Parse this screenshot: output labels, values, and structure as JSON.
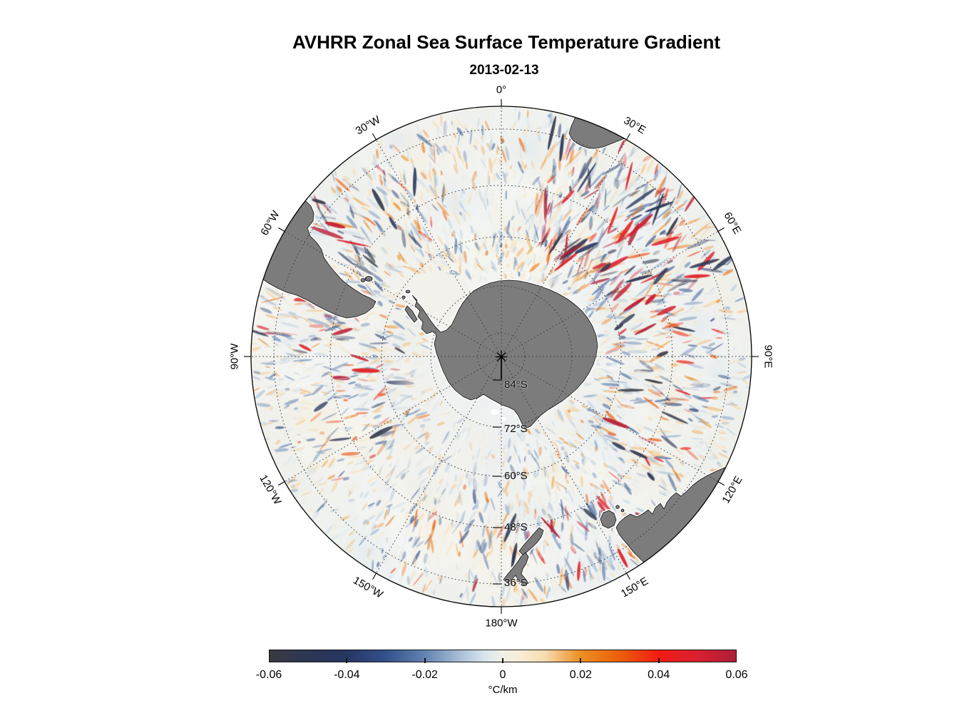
{
  "figure": {
    "title": "AVHRR Zonal Sea Surface Temperature Gradient",
    "subtitle": "2013-02-13"
  },
  "map": {
    "longitude_labels": [
      {
        "deg": 0,
        "text": "0°"
      },
      {
        "deg": 30,
        "text": "30°E"
      },
      {
        "deg": 60,
        "text": "60°E"
      },
      {
        "deg": 90,
        "text": "90°E"
      },
      {
        "deg": 120,
        "text": "120°E"
      },
      {
        "deg": 150,
        "text": "150°E"
      },
      {
        "deg": 180,
        "text": "180°W"
      },
      {
        "deg": 210,
        "text": "150°W"
      },
      {
        "deg": 240,
        "text": "120°W"
      },
      {
        "deg": 270,
        "text": "90°W"
      },
      {
        "deg": 300,
        "text": "60°W"
      },
      {
        "deg": 330,
        "text": "30°W"
      }
    ],
    "latitude_labels": [
      {
        "text": "84°S"
      },
      {
        "text": "72°S"
      },
      {
        "text": "60°S"
      },
      {
        "text": "48°S"
      },
      {
        "text": "36°S"
      }
    ],
    "land_color": "#7c7c7c",
    "ice_color": "#ffffff",
    "gridline_color": "#3c3c3c"
  },
  "colorbar": {
    "ticks": [
      "-0.06",
      "-0.04",
      "-0.02",
      "0",
      "0.02",
      "0.04",
      "0.06"
    ],
    "unit": "°C/km",
    "min": -0.06,
    "max": 0.06,
    "stops": [
      {
        "t": -1.0,
        "c": "#3a3a40"
      },
      {
        "t": -0.85,
        "c": "#2e3752"
      },
      {
        "t": -0.67,
        "c": "#263763"
      },
      {
        "t": -0.5,
        "c": "#33518c"
      },
      {
        "t": -0.33,
        "c": "#6584b2"
      },
      {
        "t": -0.18,
        "c": "#a8c0d8"
      },
      {
        "t": -0.08,
        "c": "#d8e4ee"
      },
      {
        "t": 0.0,
        "c": "#f0f1e6"
      },
      {
        "t": 0.08,
        "c": "#f8ecd4"
      },
      {
        "t": 0.18,
        "c": "#f7dcb0"
      },
      {
        "t": 0.33,
        "c": "#ec9025"
      },
      {
        "t": 0.5,
        "c": "#ec5f0a"
      },
      {
        "t": 0.67,
        "c": "#f01c12"
      },
      {
        "t": 0.83,
        "c": "#d92030"
      },
      {
        "t": 1.0,
        "c": "#ae1e38"
      }
    ]
  },
  "chart_data": {
    "type": "heatmap",
    "title": "AVHRR Zonal Sea Surface Temperature Gradient",
    "subtitle": "2013-02-13",
    "projection": "south polar stereographic",
    "field": "zonal SST gradient",
    "units": "°C/km",
    "colorbar_range": [
      -0.06,
      0.06
    ],
    "colorbar_ticks": [
      -0.06,
      -0.04,
      -0.02,
      0,
      0.02,
      0.04,
      0.06
    ],
    "longitude_gridlines_deg": [
      0,
      30,
      60,
      90,
      120,
      150,
      180,
      210,
      240,
      270,
      300,
      330
    ],
    "latitude_gridlines": [
      "84°S",
      "72°S",
      "60°S",
      "48°S",
      "36°S"
    ],
    "visible_land": [
      "Antarctica",
      "South America (Patagonia)",
      "Africa (southern tip)",
      "Australia",
      "Tasmania",
      "New Zealand",
      "Falkland Islands",
      "South Georgia"
    ]
  }
}
